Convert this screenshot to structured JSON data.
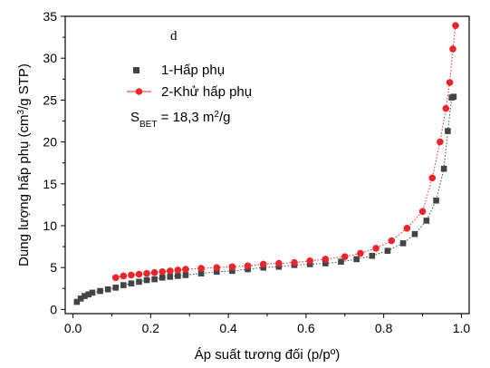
{
  "chart_data": {
    "type": "scatter",
    "panel_label": "d",
    "xlabel": "Áp suất tương đối (p/pº)",
    "ylabel_parts": [
      "Dung lượng hấp phụ (cm",
      "3",
      "/g STP)"
    ],
    "xlim": [
      -0.02,
      1.02
    ],
    "ylim": [
      -0.5,
      35
    ],
    "xticks": [
      "0.0",
      "0.2",
      "0.4",
      "0.6",
      "0.8",
      "1.0"
    ],
    "xtick_values": [
      0.0,
      0.2,
      0.4,
      0.6,
      0.8,
      1.0
    ],
    "yticks": [
      "0",
      "5",
      "10",
      "15",
      "20",
      "25",
      "30",
      "35"
    ],
    "ytick_values": [
      0,
      5,
      10,
      15,
      20,
      25,
      30,
      35
    ],
    "annotation_parts": [
      "S",
      "BET",
      " = 18,3 m",
      "2",
      "/g"
    ],
    "legend_position": "upper-left",
    "series": [
      {
        "name": "1-Hấp phụ",
        "marker": "square",
        "color": "#444444",
        "line": "dotted",
        "x": [
          0.01,
          0.02,
          0.03,
          0.04,
          0.05,
          0.07,
          0.09,
          0.11,
          0.13,
          0.15,
          0.17,
          0.19,
          0.21,
          0.23,
          0.25,
          0.27,
          0.29,
          0.33,
          0.37,
          0.41,
          0.45,
          0.49,
          0.53,
          0.57,
          0.61,
          0.65,
          0.69,
          0.73,
          0.77,
          0.81,
          0.85,
          0.88,
          0.91,
          0.935,
          0.955,
          0.965,
          0.975,
          0.98
        ],
        "y": [
          0.9,
          1.3,
          1.6,
          1.8,
          2.0,
          2.2,
          2.4,
          2.6,
          2.9,
          3.1,
          3.3,
          3.5,
          3.6,
          3.8,
          3.9,
          4.0,
          4.1,
          4.3,
          4.5,
          4.6,
          4.8,
          5.0,
          5.1,
          5.3,
          5.4,
          5.5,
          5.7,
          6.0,
          6.4,
          7.0,
          7.9,
          9.0,
          10.6,
          13.0,
          16.8,
          21.3,
          25.3,
          25.4
        ]
      },
      {
        "name": "2-Khử hấp phụ",
        "marker": "circle",
        "color": "#e8262c",
        "line": "dotted",
        "x": [
          0.11,
          0.13,
          0.15,
          0.17,
          0.19,
          0.21,
          0.23,
          0.25,
          0.27,
          0.29,
          0.33,
          0.37,
          0.41,
          0.45,
          0.49,
          0.53,
          0.57,
          0.61,
          0.65,
          0.7,
          0.74,
          0.78,
          0.82,
          0.86,
          0.9,
          0.925,
          0.945,
          0.96,
          0.97,
          0.978,
          0.985
        ],
        "y": [
          3.8,
          4.0,
          4.1,
          4.2,
          4.3,
          4.4,
          4.5,
          4.6,
          4.7,
          4.8,
          4.9,
          5.0,
          5.1,
          5.2,
          5.4,
          5.5,
          5.6,
          5.8,
          6.0,
          6.3,
          6.7,
          7.3,
          8.2,
          9.7,
          11.7,
          15.7,
          20.0,
          24.0,
          27.1,
          31.1,
          33.9
        ]
      }
    ]
  }
}
